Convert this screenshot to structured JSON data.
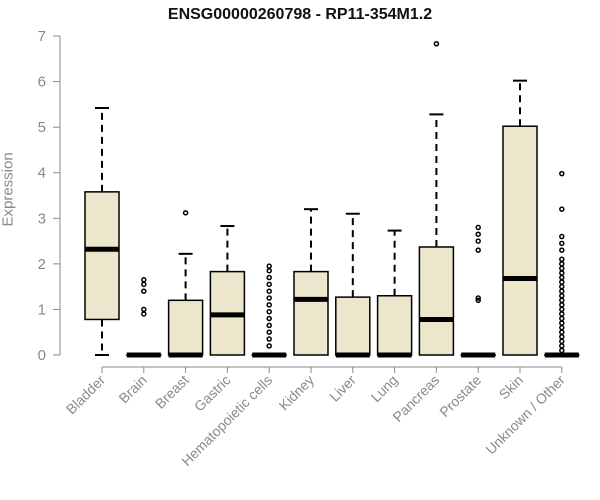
{
  "chart_data": {
    "type": "box",
    "title": "ENSG00000260798 - RP11-354M1.2",
    "xlabel": "",
    "ylabel": "Expression",
    "ylim": [
      0,
      7
    ],
    "yticks": [
      0,
      1,
      2,
      3,
      4,
      5,
      6,
      7
    ],
    "grid": false,
    "box_fill": "#ece6cd",
    "box_stroke": "#000000",
    "axis_color": "#8a8a8a",
    "categories": [
      "Bladder",
      "Brain",
      "Breast",
      "Gastric",
      "Hematopoietic cells",
      "Kidney",
      "Liver",
      "Lung",
      "Pancreas",
      "Prostate",
      "Skin",
      "Unknown / Other"
    ],
    "boxes": [
      {
        "min": 0,
        "q1": 0.78,
        "median": 2.32,
        "q3": 3.58,
        "max": 5.42,
        "outliers": []
      },
      {
        "min": 0,
        "q1": 0,
        "median": 0,
        "q3": 0,
        "max": 0,
        "outliers": [
          0.9,
          1.0,
          1.4,
          1.55,
          1.65
        ]
      },
      {
        "min": 0,
        "q1": 0,
        "median": 0,
        "q3": 1.2,
        "max": 2.22,
        "outliers": [
          3.12
        ]
      },
      {
        "min": 0,
        "q1": 0,
        "median": 0.88,
        "q3": 1.83,
        "max": 2.83,
        "outliers": []
      },
      {
        "min": 0,
        "q1": 0,
        "median": 0,
        "q3": 0,
        "max": 0,
        "outliers": [
          0.2,
          0.35,
          0.5,
          0.65,
          0.8,
          0.95,
          1.1,
          1.25,
          1.4,
          1.55,
          1.7,
          1.85,
          1.95
        ]
      },
      {
        "min": 0,
        "q1": 0,
        "median": 1.22,
        "q3": 1.83,
        "max": 3.2,
        "outliers": []
      },
      {
        "min": 0,
        "q1": 0,
        "median": 0,
        "q3": 1.27,
        "max": 3.1,
        "outliers": []
      },
      {
        "min": 0,
        "q1": 0,
        "median": 0,
        "q3": 1.3,
        "max": 2.73,
        "outliers": []
      },
      {
        "min": 0,
        "q1": 0,
        "median": 0.78,
        "q3": 2.37,
        "max": 5.28,
        "outliers": [
          6.83
        ]
      },
      {
        "min": 0,
        "q1": 0,
        "median": 0,
        "q3": 0,
        "max": 0,
        "outliers": [
          1.2,
          1.25,
          2.3,
          2.5,
          2.65,
          2.8
        ]
      },
      {
        "min": 0,
        "q1": 0,
        "median": 1.68,
        "q3": 5.02,
        "max": 6.02,
        "outliers": []
      },
      {
        "min": 0,
        "q1": 0,
        "median": 0,
        "q3": 0,
        "max": 0,
        "outliers": [
          0.1,
          0.2,
          0.3,
          0.4,
          0.5,
          0.6,
          0.7,
          0.8,
          0.9,
          1.0,
          1.1,
          1.2,
          1.3,
          1.4,
          1.5,
          1.6,
          1.7,
          1.8,
          1.9,
          2.0,
          2.1,
          2.3,
          2.45,
          2.6,
          3.2,
          3.98
        ]
      }
    ]
  }
}
